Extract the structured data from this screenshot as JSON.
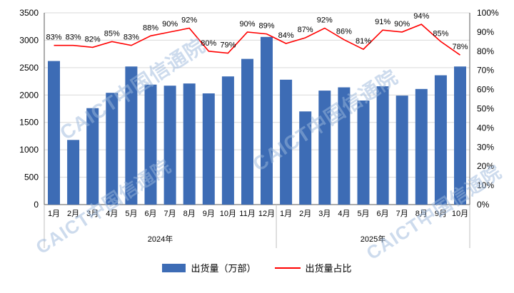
{
  "watermark": {
    "text": "CAICT中国信通院"
  },
  "legend": {
    "bars_label": "出货量（万部）",
    "line_label": "出货量占比"
  },
  "chart_data": {
    "type": "bar",
    "title": "",
    "groups": [
      {
        "year": "2024年",
        "months": [
          "1月",
          "2月",
          "3月",
          "4月",
          "5月",
          "6月",
          "7月",
          "8月",
          "9月",
          "10月",
          "11月",
          "12月"
        ]
      },
      {
        "year": "2025年",
        "months": [
          "1月",
          "2月",
          "3月",
          "4月",
          "5月",
          "6月",
          "7月",
          "8月",
          "9月",
          "10月"
        ]
      }
    ],
    "series": [
      {
        "name": "出货量（万部）",
        "type": "bar",
        "axis": "left",
        "color": "#3d6cb5",
        "values": [
          2620,
          1180,
          1760,
          2040,
          2520,
          2190,
          2170,
          2210,
          2030,
          2340,
          2660,
          3060,
          2280,
          1700,
          2080,
          2140,
          1900,
          2160,
          1990,
          2110,
          2360,
          2520
        ]
      },
      {
        "name": "出货量占比",
        "type": "line",
        "axis": "right",
        "color": "#ff0000",
        "values": [
          83,
          83,
          82,
          85,
          83,
          88,
          90,
          92,
          80,
          79,
          90,
          89,
          84,
          87,
          92,
          86,
          81,
          91,
          90,
          94,
          85,
          78
        ],
        "labels": [
          "83%",
          "83%",
          "82%",
          "85%",
          "83%",
          "88%",
          "90%",
          "92%",
          "80%",
          "79%",
          "90%",
          "89%",
          "84%",
          "87%",
          "92%",
          "86%",
          "81%",
          "91%",
          "90%",
          "94%",
          "85%",
          "78%"
        ]
      }
    ],
    "left_axis": {
      "min": 0,
      "max": 3500,
      "step": 500
    },
    "right_axis": {
      "min": 0,
      "max": 100,
      "step": 10,
      "suffix": "%"
    },
    "colors": {
      "gridline": "#d9d9d9",
      "axis": "#595959",
      "separator": "#bfbfbf",
      "text": "#000000",
      "watermark": "#9cb8dc"
    }
  }
}
